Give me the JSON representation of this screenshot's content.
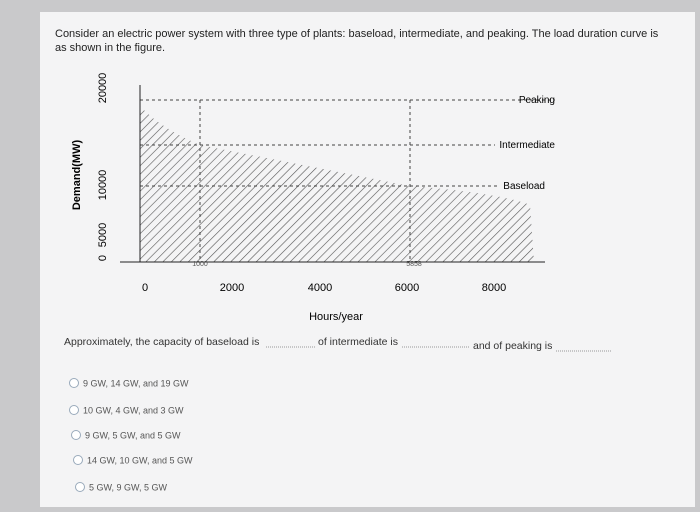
{
  "question": {
    "text": "Consider an electric power system with three type of plants: baseload, intermediate, and peaking. The load duration curve is as shown in the figure."
  },
  "figure": {
    "y_label": "Demand(MW)",
    "x_label": "Hours/year",
    "yticks": [
      "0",
      "5000",
      "10000",
      "20000"
    ],
    "xticks": [
      "0",
      "2000",
      "4000",
      "6000",
      "8000"
    ],
    "region_labels": [
      "Peaking",
      "Intermediate",
      "Baseload"
    ],
    "markers": [
      "1000",
      "5858"
    ]
  },
  "prompt": [
    "Approximately, the capacity of baseload is",
    "of intermediate is",
    "and of peaking is"
  ],
  "options": [
    "9 GW, 14 GW, and 19 GW",
    "10 GW, 4 GW, and 3 GW",
    "9 GW, 5 GW, and 5 GW",
    "14 GW, 10 GW, and 5 GW",
    "5 GW, 9 GW, 5 GW"
  ]
}
